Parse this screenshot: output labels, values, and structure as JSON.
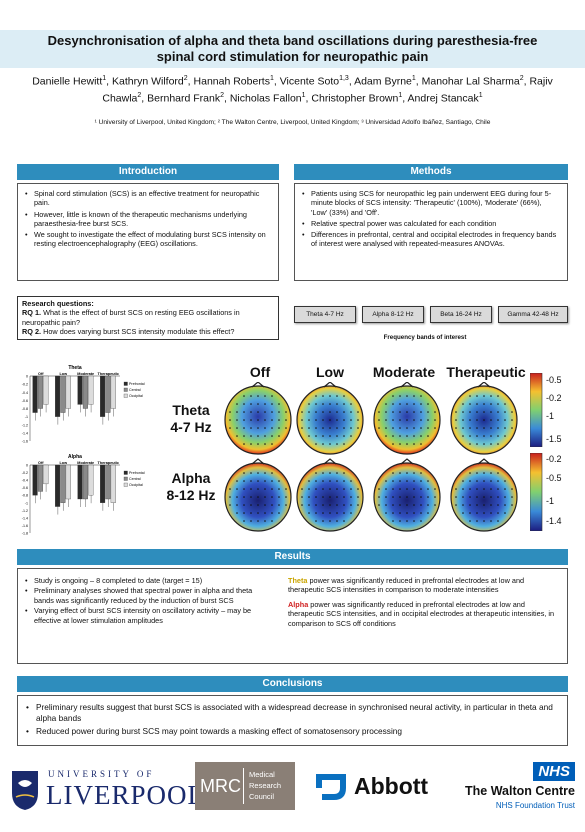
{
  "title": "Desynchronisation of alpha and theta band oscillations during paresthesia-free spinal cord stimulation for neuropathic pain",
  "authors": [
    {
      "name": "Danielle Hewitt",
      "aff": "1"
    },
    {
      "name": "Kathryn Wilford",
      "aff": "2"
    },
    {
      "name": "Hannah Roberts",
      "aff": "1"
    },
    {
      "name": "Vicente Soto",
      "aff": "1,3"
    },
    {
      "name": "Adam Byrne",
      "aff": "1"
    },
    {
      "name": "Manohar Lal Sharma",
      "aff": "2"
    },
    {
      "name": "Rajiv Chawla",
      "aff": "2"
    },
    {
      "name": "Bernhard Frank",
      "aff": "2"
    },
    {
      "name": "Nicholas Fallon",
      "aff": "1"
    },
    {
      "name": "Christopher Brown",
      "aff": "1"
    },
    {
      "name": "Andrej Stancak",
      "aff": "1"
    }
  ],
  "affiliations": "¹ University of Liverpool, United Kingdom; ² The Walton Centre, Liverpool, United Kingdom; ³ Universidad Adolfo Ibáñez, Santiago, Chile",
  "introduction": {
    "heading": "Introduction",
    "bullets": [
      "Spinal cord stimulation (SCS) is an effective treatment for neuropathic pain.",
      "However, little is known of the therapeutic mechanisms underlying paraesthesia-free burst SCS.",
      "We sought to investigate the effect of modulating burst SCS intensity on resting electroencephalography (EEG) oscillations."
    ]
  },
  "methods": {
    "heading": "Methods",
    "bullets": [
      "Patients using SCS for neuropathic leg pain underwent EEG during four 5-minute blocks of SCS intensity: 'Therapeutic' (100%), 'Moderate' (66%), 'Low' (33%) and 'Off'.",
      "Relative spectral power was calculated for each condition",
      "Differences in prefrontal, central and occipital electrodes in frequency bands of interest were analysed with repeated-measures ANOVAs."
    ]
  },
  "research_questions": {
    "heading": "Research questions:",
    "rq1_label": "RQ 1.",
    "rq1": "What is the effect of burst SCS on resting EEG oscillations in neuropathic pain?",
    "rq2_label": "RQ 2.",
    "rq2": "How does varying burst SCS intensity modulate this effect?"
  },
  "frequency_bands": {
    "caption": "Frequency bands of interest",
    "bands": [
      "Theta 4-7 Hz",
      "Alpha 8-12 Hz",
      "Beta 16-24 Hz",
      "Gamma 42-48 Hz"
    ]
  },
  "topomaps": {
    "conditions": [
      "Off",
      "Low",
      "Moderate",
      "Therapeutic"
    ],
    "rows": [
      {
        "band": "Theta",
        "range": "4-7 Hz",
        "scale": [
          "-0.5",
          "-0.2",
          "-1",
          "-1.5"
        ]
      },
      {
        "band": "Alpha",
        "range": "8-12 Hz",
        "scale": [
          "-0.2",
          "-0.5",
          "-1",
          "-1.4"
        ]
      }
    ]
  },
  "chart_data": [
    {
      "type": "bar",
      "title": "Theta",
      "categories": [
        "Off",
        "Low",
        "Moderate",
        "Therapeutic"
      ],
      "series": [
        {
          "name": "Prefrontal",
          "values": [
            -0.9,
            -1.0,
            -0.7,
            -1.0
          ]
        },
        {
          "name": "Central",
          "values": [
            -0.8,
            -0.9,
            -0.8,
            -0.9
          ]
        },
        {
          "name": "Occipital",
          "values": [
            -0.7,
            -0.8,
            -0.7,
            -0.8
          ]
        }
      ],
      "yticks": [
        "0",
        "-0.2",
        "-0.4",
        "-0.6",
        "-0.8",
        "-1",
        "-1.2",
        "-1.4",
        "-1.6"
      ],
      "ylim": [
        -1.6,
        0
      ]
    },
    {
      "type": "bar",
      "title": "Alpha",
      "categories": [
        "Off",
        "Low",
        "Moderate",
        "Therapeutic"
      ],
      "series": [
        {
          "name": "Prefrontal",
          "values": [
            -0.8,
            -1.1,
            -0.9,
            -1.0
          ]
        },
        {
          "name": "Central",
          "values": [
            -0.7,
            -1.0,
            -0.9,
            -0.9
          ]
        },
        {
          "name": "Occipital",
          "values": [
            -0.5,
            -0.9,
            -0.8,
            -1.0
          ]
        }
      ],
      "yticks": [
        "0",
        "-0.2",
        "-0.4",
        "-0.6",
        "-0.8",
        "-1",
        "-1.2",
        "-1.4",
        "-1.6",
        "-1.8"
      ],
      "ylim": [
        -1.8,
        0
      ]
    }
  ],
  "results": {
    "heading": "Results",
    "bullets": [
      "Study is ongoing – 8 completed to date (target = 15)",
      "Preliminary analyses showed that spectral power in alpha and theta bands was significantly reduced by the induction of burst SCS",
      "Varying effect of burst SCS intensity on oscillatory activity – may be effective at lower stimulation amplitudes"
    ],
    "theta_word": "Theta",
    "theta_text": " power was significantly reduced in prefrontal electrodes at low and therapeutic SCS intensities in comparison to moderate intensities",
    "alpha_word": "Alpha",
    "alpha_text": " power was significantly reduced in prefrontal electrodes at low and therapeutic SCS intensities, and in occipital electrodes at therapeutic intensities, in comparison to SCS off conditions"
  },
  "conclusions": {
    "heading": "Conclusions",
    "bullets": [
      "Preliminary results suggest that burst SCS is associated with a widespread decrease in synchronised neural activity, in particular in theta and alpha bands",
      "Reduced power during burst SCS may point towards a masking effect of somatosensory processing"
    ]
  },
  "logos": {
    "liverpool_top": "UNIVERSITY OF",
    "liverpool_main": "LIVERPOOL",
    "mrc": "MRC",
    "mrc_lines": [
      "Medical",
      "Research",
      "Council"
    ],
    "abbott": "Abbott",
    "nhs": "NHS",
    "walton": "The Walton Centre",
    "walton_sub": "NHS Foundation Trust"
  },
  "colors": {
    "accent": "#2e8dbd",
    "title_bg": "#dcedf5",
    "theta": "#c9a400",
    "alpha": "#d02020"
  }
}
